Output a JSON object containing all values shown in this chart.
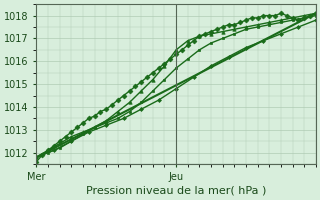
{
  "title": "",
  "xlabel": "Pression niveau de la mer( hPa )",
  "ylim": [
    1011.5,
    1018.5
  ],
  "xlim": [
    0,
    48
  ],
  "yticks": [
    1012,
    1013,
    1014,
    1015,
    1016,
    1017,
    1018
  ],
  "xtick_positions": [
    0,
    24
  ],
  "xtick_labels": [
    "Mer",
    "Jeu"
  ],
  "vline_x": 24,
  "bg_color": "#d8eedc",
  "grid_color": "#b0ccb4",
  "line_color": "#1a6b1a",
  "lines": [
    {
      "x": [
        0,
        1,
        2,
        3,
        4,
        5,
        6,
        7,
        8,
        9,
        10,
        11,
        12,
        13,
        14,
        15,
        16,
        17,
        18,
        19,
        20,
        21,
        22,
        23,
        24,
        25,
        26,
        27,
        28,
        29,
        30,
        31,
        32,
        33,
        34,
        35,
        36,
        37,
        38,
        39,
        40,
        41,
        42,
        43,
        44,
        45,
        46,
        47,
        48
      ],
      "y": [
        1011.6,
        1011.9,
        1012.1,
        1012.3,
        1012.5,
        1012.7,
        1012.9,
        1013.1,
        1013.3,
        1013.5,
        1013.6,
        1013.8,
        1013.9,
        1014.1,
        1014.3,
        1014.5,
        1014.7,
        1014.9,
        1015.1,
        1015.3,
        1015.5,
        1015.7,
        1015.9,
        1016.1,
        1016.3,
        1016.5,
        1016.7,
        1016.9,
        1017.1,
        1017.2,
        1017.3,
        1017.4,
        1017.5,
        1017.6,
        1017.6,
        1017.7,
        1017.8,
        1017.9,
        1017.9,
        1018.0,
        1018.0,
        1018.0,
        1018.1,
        1018.0,
        1017.9,
        1017.8,
        1017.9,
        1018.0,
        1018.1
      ],
      "marker": "D",
      "markersize": 2.5,
      "lw": 1.0
    },
    {
      "x": [
        0,
        2,
        4,
        6,
        8,
        10,
        12,
        14,
        16,
        18,
        20,
        22,
        24,
        26,
        28,
        30,
        32,
        34,
        36,
        38,
        40,
        42,
        44,
        46,
        48
      ],
      "y": [
        1011.8,
        1012.1,
        1012.4,
        1012.7,
        1012.9,
        1013.1,
        1013.4,
        1013.8,
        1014.2,
        1014.7,
        1015.2,
        1015.8,
        1016.5,
        1016.9,
        1017.1,
        1017.2,
        1017.3,
        1017.4,
        1017.5,
        1017.6,
        1017.7,
        1017.8,
        1017.9,
        1018.0,
        1018.1
      ],
      "marker": "^",
      "markersize": 2.5,
      "lw": 1.0
    },
    {
      "x": [
        0,
        2,
        4,
        6,
        8,
        10,
        12,
        14,
        16,
        18,
        20,
        22,
        24,
        26,
        28,
        30,
        32,
        34,
        36,
        38,
        40,
        42,
        44,
        46,
        48
      ],
      "y": [
        1011.8,
        1012.0,
        1012.2,
        1012.5,
        1012.8,
        1013.1,
        1013.3,
        1013.5,
        1013.8,
        1014.2,
        1014.7,
        1015.2,
        1015.7,
        1016.1,
        1016.5,
        1016.8,
        1017.0,
        1017.2,
        1017.4,
        1017.5,
        1017.6,
        1017.7,
        1017.8,
        1017.9,
        1018.0
      ],
      "marker": "s",
      "markersize": 2.0,
      "lw": 1.0
    },
    {
      "x": [
        0,
        3,
        6,
        9,
        12,
        15,
        18,
        21,
        24,
        27,
        30,
        33,
        36,
        39,
        42,
        45,
        48
      ],
      "y": [
        1011.8,
        1012.1,
        1012.5,
        1012.9,
        1013.2,
        1013.5,
        1013.9,
        1014.3,
        1014.8,
        1015.3,
        1015.8,
        1016.2,
        1016.6,
        1016.9,
        1017.2,
        1017.5,
        1017.8
      ],
      "marker": "D",
      "markersize": 2.0,
      "lw": 1.0
    },
    {
      "x": [
        0,
        48
      ],
      "y": [
        1011.8,
        1018.1
      ],
      "marker": null,
      "markersize": 0,
      "lw": 1.5
    }
  ]
}
